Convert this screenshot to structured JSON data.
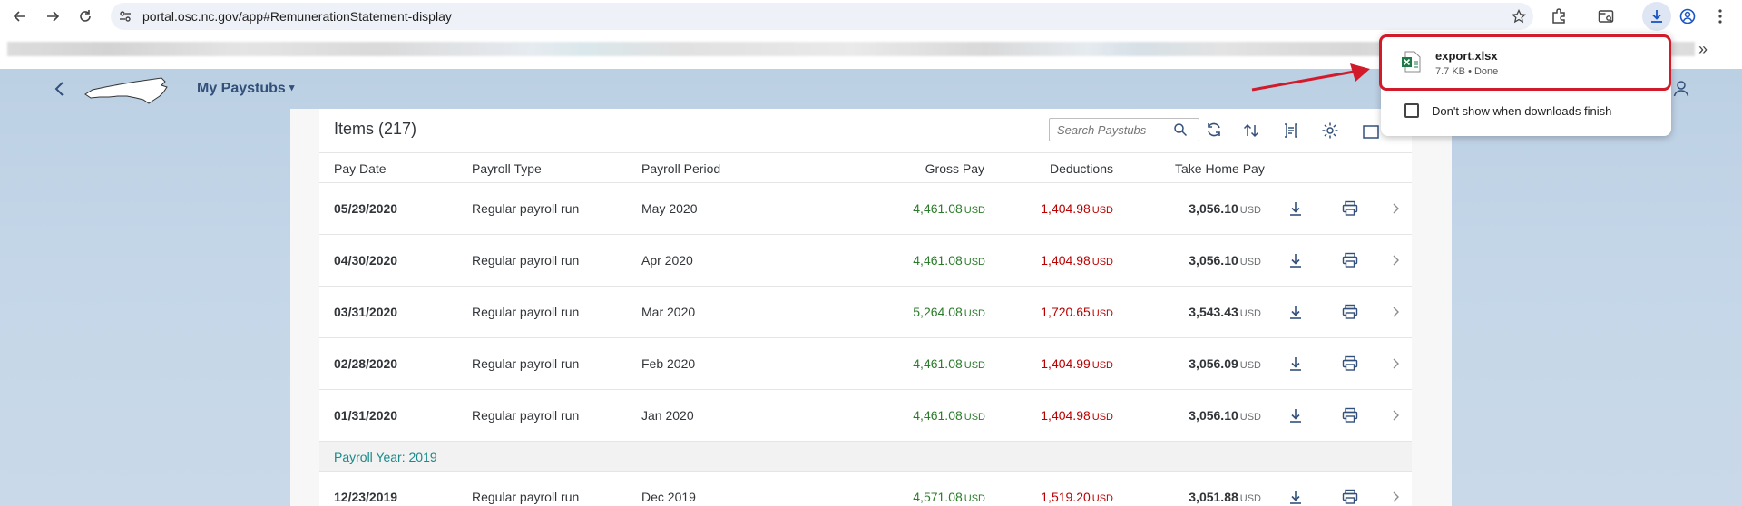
{
  "browser": {
    "url": "portal.osc.nc.gov/app#RemunerationStatement-display",
    "icons": [
      "back-arrow-icon",
      "forward-arrow-icon",
      "reload-icon",
      "site-info-icon",
      "bookmark-star-icon",
      "extensions-icon",
      "tab-search-icon",
      "download-icon",
      "profile-icon",
      "more-menu-icon"
    ],
    "bookmarks_overflow": "»"
  },
  "download_popup": {
    "file_name": "export.xlsx",
    "status": "7.7 KB • Done",
    "checkbox_label": "Don't show when downloads finish",
    "checkbox_checked": false
  },
  "app": {
    "title": "My Paystubs",
    "title_caret": "▾"
  },
  "table": {
    "title": "Items (217)",
    "search_placeholder": "Search Paystubs",
    "columns": {
      "pay_date": "Pay Date",
      "payroll_type": "Payroll Type",
      "payroll_period": "Payroll Period",
      "gross_pay": "Gross Pay",
      "deductions": "Deductions",
      "take_home_pay": "Take Home Pay"
    },
    "currency": "USD",
    "rows": [
      {
        "pay_date": "05/29/2020",
        "payroll_type": "Regular payroll run",
        "payroll_period": "May 2020",
        "gross": "4,461.08",
        "deductions": "1,404.98",
        "take_home": "3,056.10"
      },
      {
        "pay_date": "04/30/2020",
        "payroll_type": "Regular payroll run",
        "payroll_period": "Apr 2020",
        "gross": "4,461.08",
        "deductions": "1,404.98",
        "take_home": "3,056.10"
      },
      {
        "pay_date": "03/31/2020",
        "payroll_type": "Regular payroll run",
        "payroll_period": "Mar 2020",
        "gross": "5,264.08",
        "deductions": "1,720.65",
        "take_home": "3,543.43"
      },
      {
        "pay_date": "02/28/2020",
        "payroll_type": "Regular payroll run",
        "payroll_period": "Feb 2020",
        "gross": "4,461.08",
        "deductions": "1,404.99",
        "take_home": "3,056.09"
      },
      {
        "pay_date": "01/31/2020",
        "payroll_type": "Regular payroll run",
        "payroll_period": "Jan 2020",
        "gross": "4,461.08",
        "deductions": "1,404.98",
        "take_home": "3,056.10"
      }
    ],
    "group_label": "Payroll Year: 2019",
    "rows_2019": [
      {
        "pay_date": "12/23/2019",
        "payroll_type": "Regular payroll run",
        "payroll_period": "Dec 2019",
        "gross": "4,571.08",
        "deductions": "1,519.20",
        "take_home": "3,051.88"
      }
    ]
  },
  "colors": {
    "gross": "#2b7c2b",
    "deductions": "#bb0000",
    "group_label": "#1a8a8a",
    "title": "#32507a",
    "highlight": "#d11a2a"
  }
}
